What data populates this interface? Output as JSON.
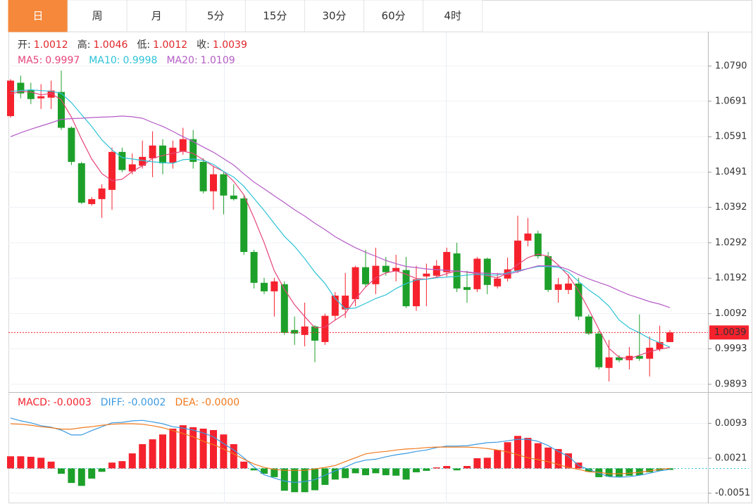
{
  "tabs": [
    "日",
    "周",
    "月",
    "5分",
    "15分",
    "30分",
    "60分",
    "4时"
  ],
  "active_tab": "日",
  "chart_data": [
    {
      "type": "candlestick",
      "ohlc_readout": [
        {
          "label": "开:",
          "value": "1.0012"
        },
        {
          "label": "高:",
          "value": "1.0046"
        },
        {
          "label": "低:",
          "value": "1.0012"
        },
        {
          "label": "收:",
          "value": "1.0039"
        }
      ],
      "up_color": "#f5222d",
      "down_color": "#1da02a",
      "candles": {
        "open": [
          1.0649,
          1.0743,
          1.0723,
          1.0699,
          1.0701,
          1.0717,
          1.0616,
          1.0516,
          1.0401,
          1.0415,
          1.0441,
          1.0548,
          1.0493,
          1.0509,
          1.053,
          1.0566,
          1.0518,
          1.055,
          1.0584,
          1.052,
          1.0437,
          1.0485,
          1.0425,
          1.0417,
          1.0266,
          1.0179,
          1.0155,
          1.0175,
          1.0046,
          1.0032,
          1.0056,
          1.0012,
          1.0086,
          1.0104,
          1.0133,
          1.0223,
          1.0175,
          1.0227,
          1.0211,
          1.0215,
          1.0113,
          1.0197,
          1.0199,
          1.0209,
          1.0262,
          1.0167,
          1.0161,
          1.0247,
          1.0169,
          1.0191,
          1.0213,
          1.0298,
          1.0318,
          1.0254,
          1.0159,
          1.0159,
          1.0177,
          1.0084,
          1.0036,
          0.9939,
          0.9969,
          0.9961,
          0.9973,
          0.9965,
          0.9992,
          1.0012
        ],
        "high": [
          1.0753,
          1.0763,
          1.0743,
          1.0739,
          1.0749,
          1.0777,
          1.062,
          1.052,
          1.0421,
          1.0457,
          1.056,
          1.056,
          1.0544,
          1.058,
          1.0606,
          1.0584,
          1.058,
          1.0616,
          1.061,
          1.053,
          1.0509,
          1.0491,
          1.0457,
          1.0425,
          1.0272,
          1.0193,
          1.0193,
          1.0183,
          1.0084,
          1.0123,
          1.006,
          1.0092,
          1.0153,
          1.0207,
          1.0227,
          1.0272,
          1.0278,
          1.0252,
          1.0258,
          1.0252,
          1.0227,
          1.0233,
          1.0243,
          1.0278,
          1.0292,
          1.0213,
          1.0252,
          1.025,
          1.0207,
          1.025,
          1.0368,
          1.0362,
          1.0326,
          1.0266,
          1.0193,
          1.0203,
          1.0193,
          1.009,
          1.0044,
          1.0018,
          0.9975,
          0.9998,
          1.009,
          1.0028,
          1.0058,
          1.0046
        ],
        "low": [
          1.0645,
          1.0699,
          1.0683,
          1.0669,
          1.0669,
          1.061,
          1.0511,
          1.0401,
          1.0397,
          1.0362,
          1.0385,
          1.0491,
          1.0485,
          1.0501,
          1.0477,
          1.0485,
          1.0501,
          1.054,
          1.0501,
          1.0431,
          1.0385,
          1.0372,
          1.0411,
          1.0258,
          1.0163,
          1.0147,
          1.0084,
          1.0032,
          1.0004,
          1.0,
          0.9955,
          1.0004,
          1.0074,
          1.008,
          1.0113,
          1.0167,
          1.0147,
          1.0199,
          1.0183,
          1.0108,
          1.01,
          1.0113,
          1.0193,
          1.0197,
          1.0153,
          1.0123,
          1.0153,
          1.0147,
          1.0163,
          1.0183,
          1.0207,
          1.0282,
          1.0247,
          1.0153,
          1.0123,
          1.0147,
          1.0074,
          1.0032,
          0.9935,
          0.9901,
          0.9955,
          0.9935,
          0.9959,
          0.9915,
          0.9986,
          1.0012
        ],
        "close": [
          1.0749,
          1.0713,
          1.0697,
          1.0705,
          1.0721,
          1.0616,
          1.052,
          1.0405,
          1.0415,
          1.0445,
          1.0548,
          1.0497,
          1.0513,
          1.0534,
          1.0566,
          1.0516,
          1.056,
          1.0584,
          1.052,
          1.0437,
          1.0485,
          1.0425,
          1.0415,
          1.0266,
          1.0179,
          1.0155,
          1.0183,
          1.0038,
          1.0036,
          1.0056,
          1.0016,
          1.0086,
          1.0143,
          1.0143,
          1.0223,
          1.0175,
          1.0227,
          1.0209,
          1.0221,
          1.0113,
          1.0189,
          1.0205,
          1.0227,
          1.0266,
          1.0163,
          1.0159,
          1.0247,
          1.0173,
          1.0191,
          1.0217,
          1.0298,
          1.0318,
          1.0254,
          1.0159,
          1.0175,
          1.0177,
          1.0084,
          1.0036,
          0.9941,
          0.9969,
          0.9961,
          0.9973,
          0.9965,
          0.9996,
          1.0012,
          1.0039
        ]
      },
      "series": [
        {
          "name": "MA5:",
          "readout": "0.9997",
          "color": "#e6457a",
          "values": [
            1.0711,
            1.0719,
            1.0717,
            1.0709,
            1.0713,
            1.0695,
            1.0646,
            1.0584,
            1.0528,
            1.0487,
            1.0467,
            1.0471,
            1.0493,
            1.0509,
            1.053,
            1.0538,
            1.0544,
            1.055,
            1.0544,
            1.0526,
            1.0507,
            1.0493,
            1.0465,
            1.0427,
            1.0362,
            1.0292,
            1.0213,
            1.0161,
            1.0117,
            1.0084,
            1.0052,
            1.0054,
            1.0074,
            1.0092,
            1.0133,
            1.0167,
            1.0193,
            1.0207,
            1.0213,
            1.0203,
            1.0191,
            1.0189,
            1.0195,
            1.0205,
            1.0213,
            1.0209,
            1.0205,
            1.0199,
            1.0193,
            1.0207,
            1.0231,
            1.025,
            1.026,
            1.0254,
            1.0229,
            1.0199,
            1.0157,
            1.0104,
            1.0048,
            0.9994,
            0.9969,
            0.9965,
            0.9975,
            0.9985,
            0.9992,
            0.9997
          ]
        },
        {
          "name": "MA10:",
          "readout": "0.9998",
          "color": "#2ec3d7",
          "values": [
            1.0719,
            1.0721,
            1.0723,
            1.0721,
            1.0719,
            1.0713,
            1.0687,
            1.0653,
            1.062,
            1.0582,
            1.0554,
            1.0532,
            1.0528,
            1.0524,
            1.052,
            1.0518,
            1.0516,
            1.0526,
            1.0528,
            1.0524,
            1.0513,
            1.0493,
            1.0477,
            1.0451,
            1.0417,
            1.0383,
            1.0346,
            1.031,
            1.0282,
            1.0247,
            1.0209,
            1.0177,
            1.0135,
            1.0106,
            1.0108,
            1.0121,
            1.0135,
            1.0145,
            1.0163,
            1.0177,
            1.0187,
            1.0189,
            1.0193,
            1.0195,
            1.0197,
            1.0201,
            1.0203,
            1.0201,
            1.0201,
            1.0207,
            1.0213,
            1.0219,
            1.0225,
            1.0225,
            1.0223,
            1.0209,
            1.0183,
            1.0159,
            1.0139,
            1.0113,
            1.0074,
            1.0052,
            1.0038,
            1.0022,
            1.001,
            0.9998
          ]
        },
        {
          "name": "MA20:",
          "readout": "1.0109",
          "color": "#b55cc7",
          "values": [
            1.0591,
            1.0602,
            1.0612,
            1.0621,
            1.063,
            1.064,
            1.0642,
            1.0643,
            1.0645,
            1.0646,
            1.0647,
            1.0649,
            1.0647,
            1.0643,
            1.0631,
            1.062,
            1.0606,
            1.0591,
            1.0577,
            1.0562,
            1.0547,
            1.0529,
            1.0511,
            1.0486,
            1.0463,
            1.0444,
            1.0424,
            1.0405,
            1.0385,
            1.0367,
            1.0347,
            1.0329,
            1.0309,
            1.0293,
            1.0278,
            1.0265,
            1.0254,
            1.0242,
            1.0233,
            1.0225,
            1.0222,
            1.0218,
            1.0216,
            1.0214,
            1.0212,
            1.021,
            1.0207,
            1.0206,
            1.0205,
            1.0203,
            1.021,
            1.0219,
            1.0227,
            1.0227,
            1.0226,
            1.0216,
            1.0202,
            1.019,
            1.018,
            1.017,
            1.0157,
            1.0145,
            1.0136,
            1.0126,
            1.0119,
            1.0109
          ]
        }
      ],
      "last_price": 1.0039,
      "last_price_color": "#f5222d",
      "ylim": [
        0.9871,
        1.0887
      ],
      "yticks": [
        {
          "value": 1.079,
          "label": "1.0790"
        },
        1.0691,
        1.0591,
        1.0491,
        1.0392,
        1.0292,
        1.0192,
        1.0092,
        0.9993,
        0.9893
      ],
      "grid": true
    },
    {
      "type": "macd",
      "histogram": {
        "name": "MACD:",
        "readout": "-0.0003",
        "color": "#f5222d",
        "down_color": "#1da02a",
        "values": [
          0.0025,
          0.0025,
          0.0024,
          0.0022,
          0.0014,
          -0.0011,
          -0.003,
          -0.0036,
          -0.0021,
          -0.0007,
          0.0012,
          0.0015,
          0.0031,
          0.005,
          0.006,
          0.007,
          0.0082,
          0.0089,
          0.0085,
          0.0082,
          0.0079,
          0.007,
          0.005,
          0.0014,
          -0.0004,
          -0.0011,
          -0.0018,
          -0.0046,
          -0.0049,
          -0.0049,
          -0.0045,
          -0.0034,
          -0.0023,
          -0.002,
          -0.001,
          -0.0014,
          -0.001,
          -0.0014,
          -0.0015,
          -0.0023,
          -0.0008,
          -0.0005,
          0.0002,
          0.0005,
          -0.0004,
          0.0005,
          0.0021,
          0.0022,
          0.0038,
          0.0054,
          0.0067,
          0.0063,
          0.0052,
          0.0043,
          0.004,
          0.0031,
          0.0012,
          -0.0007,
          -0.0018,
          -0.0017,
          -0.0017,
          -0.0015,
          -0.0014,
          -0.0008,
          -0.0005,
          -0.0003
        ]
      },
      "series": [
        {
          "name": "DIFF:",
          "readout": "-0.0002",
          "color": "#3a9ae0",
          "values": [
            0.0104,
            0.0098,
            0.0094,
            0.0088,
            0.0085,
            0.0079,
            0.0069,
            0.0069,
            0.0078,
            0.0086,
            0.0094,
            0.0095,
            0.0098,
            0.0099,
            0.0096,
            0.0092,
            0.0086,
            0.0083,
            0.0079,
            0.0073,
            0.0065,
            0.0051,
            0.0038,
            0.0022,
            0.0003,
            -0.0013,
            -0.002,
            -0.0026,
            -0.0029,
            -0.0027,
            -0.0023,
            -0.0014,
            -0.0005,
            0.0003,
            0.0012,
            0.0017,
            0.0019,
            0.0024,
            0.0028,
            0.0031,
            0.0035,
            0.0038,
            0.0043,
            0.0046,
            0.0046,
            0.0047,
            0.005,
            0.0053,
            0.0054,
            0.0057,
            0.006,
            0.006,
            0.0056,
            0.0047,
            0.0035,
            0.0025,
            0.0006,
            -0.0002,
            -0.001,
            -0.0017,
            -0.0018,
            -0.0017,
            -0.0014,
            -0.001,
            -0.0005,
            -0.0002
          ]
        },
        {
          "name": "DEA:",
          "readout": "-0.0000",
          "color": "#f07a1e",
          "values": [
            0.0092,
            0.0091,
            0.0089,
            0.0086,
            0.0084,
            0.0081,
            0.0081,
            0.0084,
            0.0086,
            0.0089,
            0.0091,
            0.0092,
            0.0092,
            0.0091,
            0.0088,
            0.0084,
            0.0078,
            0.0072,
            0.0065,
            0.0056,
            0.0049,
            0.004,
            0.003,
            0.0019,
            0.0009,
            0.0002,
            -0.0002,
            -0.0004,
            -0.0004,
            -0.0004,
            -0.0001,
            0.0002,
            0.0006,
            0.0014,
            0.0022,
            0.003,
            0.0033,
            0.0035,
            0.0038,
            0.004,
            0.0041,
            0.0043,
            0.0044,
            0.0044,
            0.0044,
            0.0044,
            0.0043,
            0.0041,
            0.0038,
            0.0034,
            0.0028,
            0.0022,
            0.0018,
            0.0014,
            0.0008,
            0.0002,
            -0.0002,
            -0.0007,
            -0.0008,
            -0.0011,
            -0.0011,
            -0.001,
            -0.0008,
            -0.0005,
            -0.0002,
            0
          ]
        }
      ],
      "zero_line_color": "#2ec3d7",
      "ylim": [
        -0.0069,
        0.0153
      ],
      "yticks": [
        0.0093,
        0.0021,
        -0.0051
      ],
      "grid": true
    }
  ]
}
